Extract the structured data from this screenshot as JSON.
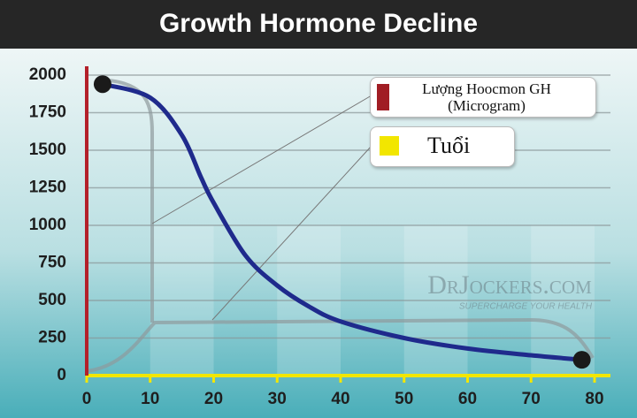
{
  "chart_data": {
    "type": "line",
    "title": "Growth Hormone Decline",
    "x": [
      2.5,
      10,
      15,
      18,
      20,
      25,
      30,
      35,
      40,
      50,
      60,
      70,
      78
    ],
    "series": [
      {
        "name": "Lượng Hoocmon GH (Microgram)",
        "color": "#1f2a8c",
        "legend_color": "#a11d24",
        "values": [
          1940,
          1850,
          1600,
          1320,
          1150,
          800,
          600,
          460,
          360,
          250,
          180,
          135,
          105
        ]
      }
    ],
    "xlabel": "Tuổi",
    "xaxis_color": "#f2e600",
    "yaxis_color": "#b3202a",
    "xlim": [
      0,
      80
    ],
    "xticks": [
      0,
      10,
      20,
      30,
      40,
      50,
      60,
      70,
      80
    ],
    "ylim": [
      0,
      2000
    ],
    "yticks": [
      0,
      250,
      500,
      750,
      1000,
      1250,
      1500,
      1750,
      2000
    ],
    "grid": true,
    "watermark": {
      "brand": "DrJockers.com",
      "tagline": "SUPERCHARGE YOUR HEALTH"
    }
  }
}
